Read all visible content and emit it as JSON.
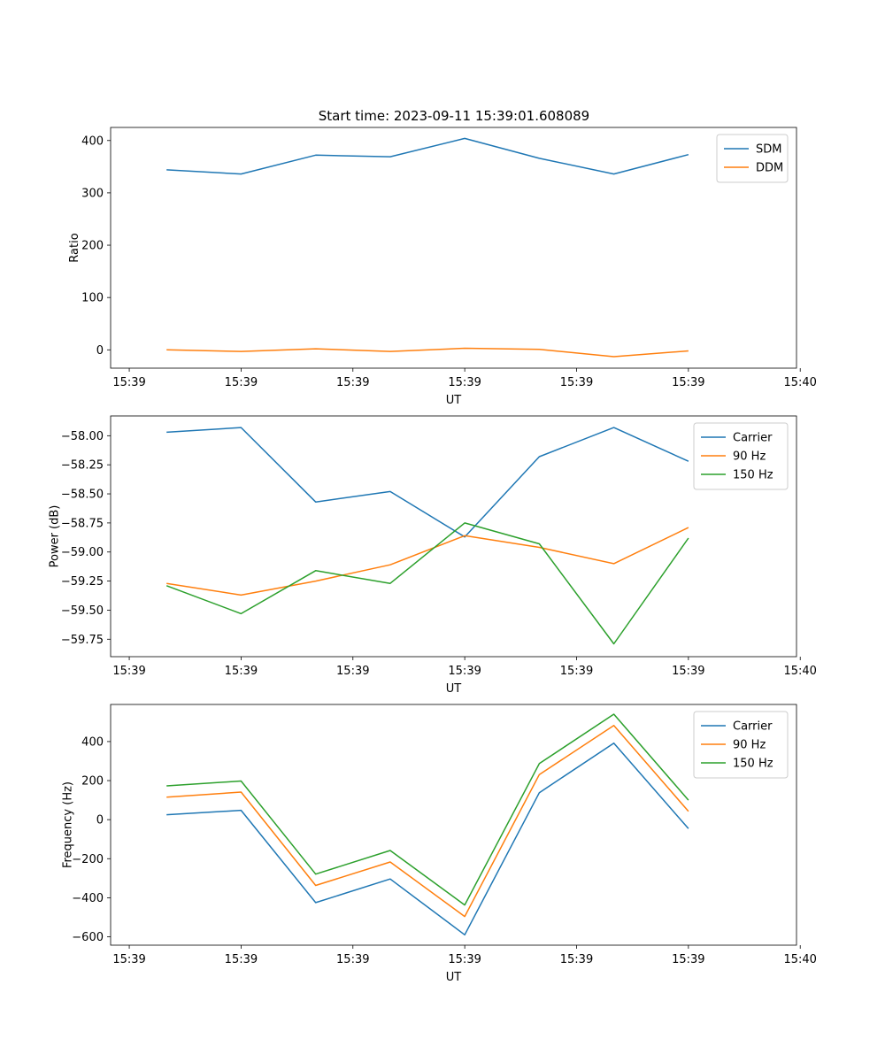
{
  "figure": {
    "title": "Start time: 2023-09-11 15:39:01.608089"
  },
  "colors": {
    "blue": "#1f77b4",
    "orange": "#ff7f0e",
    "green": "#2ca02c"
  },
  "chart_data": [
    {
      "type": "line",
      "title": "Start time: 2023-09-11 15:39:01.608089",
      "xlabel": "UT",
      "ylabel": "Ratio",
      "x": [
        1,
        2,
        3,
        4,
        5,
        6,
        7,
        8
      ],
      "xlim": [
        0.25,
        9.45
      ],
      "ylim": [
        -35,
        425
      ],
      "xticks": [
        0.5,
        2.0,
        3.5,
        5.0,
        6.5,
        8.0,
        9.5
      ],
      "xtick_labels": [
        "15:39",
        "15:39",
        "15:39",
        "15:39",
        "15:39",
        "15:39",
        "15:40"
      ],
      "yticks": [
        0,
        100,
        200,
        300,
        400
      ],
      "ytick_labels": [
        "0",
        "100",
        "200",
        "300",
        "400"
      ],
      "legend_position": "top-right",
      "series": [
        {
          "name": "SDM",
          "color": "#1f77b4",
          "values": [
            344,
            336,
            372,
            369,
            404,
            366,
            336,
            373
          ]
        },
        {
          "name": "DDM",
          "color": "#ff7f0e",
          "values": [
            0,
            -3,
            2,
            -3,
            3,
            1,
            -13,
            -2
          ]
        }
      ]
    },
    {
      "type": "line",
      "title": "",
      "xlabel": "UT",
      "ylabel": "Power (dB)",
      "x": [
        1,
        2,
        3,
        4,
        5,
        6,
        7,
        8
      ],
      "xlim": [
        0.25,
        9.45
      ],
      "ylim": [
        -59.9,
        -57.83
      ],
      "xticks": [
        0.5,
        2.0,
        3.5,
        5.0,
        6.5,
        8.0,
        9.5
      ],
      "xtick_labels": [
        "15:39",
        "15:39",
        "15:39",
        "15:39",
        "15:39",
        "15:39",
        "15:40"
      ],
      "yticks": [
        -58.0,
        -58.25,
        -58.5,
        -58.75,
        -59.0,
        -59.25,
        -59.5,
        -59.75
      ],
      "ytick_labels": [
        "−58.00",
        "−58.25",
        "−58.50",
        "−58.75",
        "−59.00",
        "−59.25",
        "−59.50",
        "−59.75"
      ],
      "legend_position": "top-right",
      "series": [
        {
          "name": "Carrier",
          "color": "#1f77b4",
          "values": [
            -57.97,
            -57.93,
            -58.57,
            -58.48,
            -58.87,
            -58.18,
            -57.93,
            -58.22
          ]
        },
        {
          "name": "90 Hz",
          "color": "#ff7f0e",
          "values": [
            -59.27,
            -59.37,
            -59.25,
            -59.11,
            -58.86,
            -58.96,
            -59.1,
            -58.79
          ]
        },
        {
          "name": "150 Hz",
          "color": "#2ca02c",
          "values": [
            -59.29,
            -59.53,
            -59.16,
            -59.27,
            -58.75,
            -58.93,
            -59.79,
            -58.88
          ]
        }
      ]
    },
    {
      "type": "line",
      "title": "",
      "xlabel": "UT",
      "ylabel": "Frequency (Hz)",
      "x": [
        1,
        2,
        3,
        4,
        5,
        6,
        7,
        8
      ],
      "xlim": [
        0.25,
        9.45
      ],
      "ylim": [
        -643,
        590
      ],
      "xticks": [
        0.5,
        2.0,
        3.5,
        5.0,
        6.5,
        8.0,
        9.5
      ],
      "xtick_labels": [
        "15:39",
        "15:39",
        "15:39",
        "15:39",
        "15:39",
        "15:39",
        "15:40"
      ],
      "yticks": [
        400,
        200,
        0,
        -200,
        -400,
        -600
      ],
      "ytick_labels": [
        "400",
        "200",
        "0",
        "−200",
        "−400",
        "−600"
      ],
      "legend_position": "top-right",
      "series": [
        {
          "name": "Carrier",
          "color": "#1f77b4",
          "values": [
            25,
            48,
            -425,
            -304,
            -590,
            138,
            392,
            -46
          ]
        },
        {
          "name": "90 Hz",
          "color": "#ff7f0e",
          "values": [
            115,
            141,
            -337,
            -217,
            -496,
            231,
            482,
            43
          ]
        },
        {
          "name": "150 Hz",
          "color": "#2ca02c",
          "values": [
            173,
            198,
            -279,
            -158,
            -437,
            287,
            540,
            100
          ]
        }
      ]
    }
  ]
}
